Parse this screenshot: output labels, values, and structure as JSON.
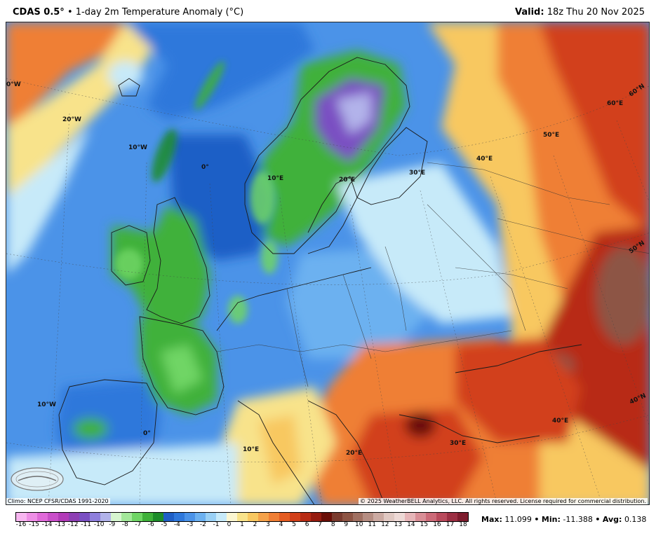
{
  "header": {
    "model": "CDAS 0.5°",
    "bullet": "•",
    "product": "1-day 2m Temperature Anomaly (°C)",
    "valid_label": "Valid:",
    "valid_time": "18z Thu 20 Nov 2025"
  },
  "footer": {
    "climo": "Climo: NCEP CFSR/CDAS 1991-2020",
    "copyright": "© 2025 WeatherBELL Analytics, LLC. All rights reserved. License required for commercial distribution."
  },
  "logo": {
    "name": "WeatherBELL",
    "icon": "weatherbell-logo"
  },
  "colorbar": {
    "ticks": [
      "-16",
      "-15",
      "-14",
      "-13",
      "-12",
      "-11",
      "-10",
      "-9",
      "-8",
      "-7",
      "-6",
      "-5",
      "-4",
      "-3",
      "-2",
      "-1",
      "0",
      "1",
      "2",
      "3",
      "4",
      "5",
      "6",
      "7",
      "8",
      "9",
      "10",
      "11",
      "12",
      "13",
      "14",
      "15",
      "16",
      "17",
      "18"
    ],
    "colors": [
      "#f7b6f0",
      "#ee8fe6",
      "#e06ad9",
      "#c94fc9",
      "#b23bb8",
      "#8e3fb4",
      "#7a4fc2",
      "#8f7fdc",
      "#b2b3ea",
      "#d6f5cf",
      "#a3e89a",
      "#6fd565",
      "#3fb13a",
      "#1d8c2a",
      "#1f5fc6",
      "#2f78db",
      "#4b93e8",
      "#6cb1f0",
      "#99d0f5",
      "#c7eaf9",
      "#fbf6d1",
      "#f8e38b",
      "#f8c861",
      "#f4a24a",
      "#ef7f35",
      "#e45c22",
      "#d2401a",
      "#b82c15",
      "#951c10",
      "#6a0f08",
      "#7a3b2f",
      "#8d5444",
      "#a07062",
      "#b58d82",
      "#cbaaa2",
      "#e0c8c2",
      "#edd9d6",
      "#e6b5b8",
      "#d98e96",
      "#cc6a78",
      "#b94a5c",
      "#9c2f43",
      "#7e1c2e"
    ]
  },
  "stats": {
    "max_label": "Max:",
    "max": "11.099",
    "min_label": "Min:",
    "min": "-11.388",
    "avg_label": "Avg:",
    "avg": "0.138",
    "sep": "•"
  },
  "map": {
    "labels": [
      {
        "text": "0°W",
        "name": "lon-label-0w-top"
      },
      {
        "text": "20°W",
        "name": "lon-label-20w"
      },
      {
        "text": "10°W",
        "name": "lon-label-10w-north"
      },
      {
        "text": "0°",
        "name": "lon-label-0-north"
      },
      {
        "text": "10°E",
        "name": "lon-label-10e-north"
      },
      {
        "text": "20°E",
        "name": "lon-label-20e-north"
      },
      {
        "text": "30°E",
        "name": "lon-label-30e-north"
      },
      {
        "text": "40°E",
        "name": "lon-label-40e-north"
      },
      {
        "text": "50°E",
        "name": "lon-label-50e"
      },
      {
        "text": "60°E",
        "name": "lon-label-60e"
      },
      {
        "text": "60°N",
        "name": "lat-label-60n"
      },
      {
        "text": "50°N",
        "name": "lat-label-50n"
      },
      {
        "text": "40°N",
        "name": "lat-label-40n"
      },
      {
        "text": "10°W",
        "name": "lon-label-10w-south"
      },
      {
        "text": "0°",
        "name": "lon-label-0-south"
      },
      {
        "text": "10°E",
        "name": "lon-label-10e-south"
      },
      {
        "text": "20°E",
        "name": "lon-label-20e-south"
      },
      {
        "text": "30°E",
        "name": "lon-label-30e-south"
      },
      {
        "text": "40°E",
        "name": "lon-label-40e-south"
      }
    ]
  }
}
